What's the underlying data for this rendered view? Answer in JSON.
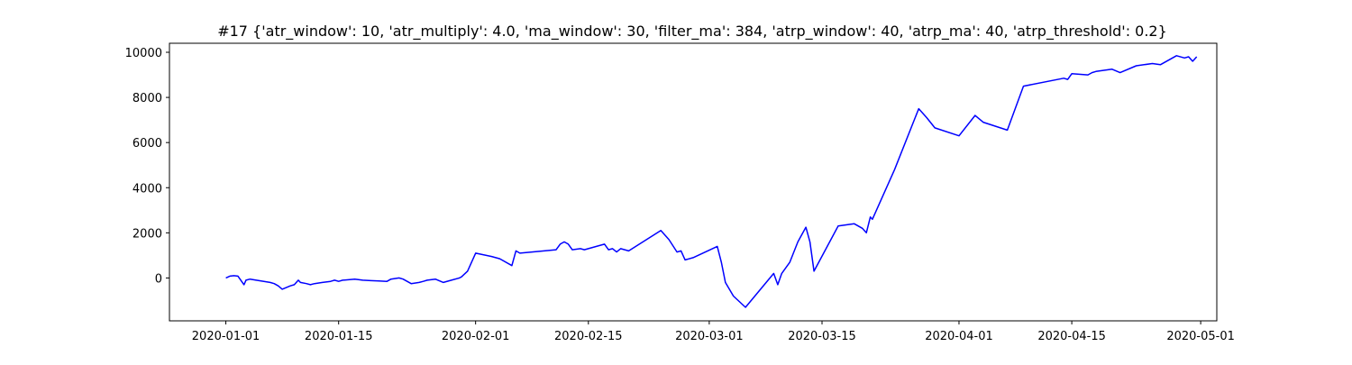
{
  "chart_data": {
    "type": "line",
    "title": "#17 {'atr_window': 10, 'atr_multiply': 4.0, 'ma_window': 30, 'filter_ma': 384, 'atrp_window': 40, 'atrp_ma': 40, 'atrp_threshold': 0.2}",
    "xlabel": "",
    "ylabel": "",
    "grid": false,
    "legend": "none",
    "line_color": "#0000ff",
    "xlim": [
      "2019-12-25",
      "2020-05-03"
    ],
    "ylim": [
      -1900,
      10400
    ],
    "x_ticks": [
      "2020-01-01",
      "2020-01-15",
      "2020-02-01",
      "2020-02-15",
      "2020-03-01",
      "2020-03-15",
      "2020-04-01",
      "2020-04-15",
      "2020-05-01"
    ],
    "y_ticks": [
      0,
      2000,
      4000,
      6000,
      8000,
      10000
    ],
    "series": [
      {
        "x": [
          "2020-01-01",
          "2020-01-01T12:00",
          "2020-01-02",
          "2020-01-02T12:00",
          "2020-01-03T06:00",
          "2020-01-03T12:00",
          "2020-01-04",
          "2020-01-06T12:00",
          "2020-01-07",
          "2020-01-07T12:00",
          "2020-01-08",
          "2020-01-09",
          "2020-01-09T12:00",
          "2020-01-10",
          "2020-01-10T06:00",
          "2020-01-11",
          "2020-01-11T12:00",
          "2020-01-12",
          "2020-01-13",
          "2020-01-14",
          "2020-01-14T12:00",
          "2020-01-15",
          "2020-01-15T12:00",
          "2020-01-17",
          "2020-01-18",
          "2020-01-19",
          "2020-01-20",
          "2020-01-21",
          "2020-01-21T12:00",
          "2020-01-22T12:00",
          "2020-01-23",
          "2020-01-24",
          "2020-01-25",
          "2020-01-25T12:00",
          "2020-01-26",
          "2020-01-27",
          "2020-01-28",
          "2020-01-29",
          "2020-01-30",
          "2020-01-30T06:00",
          "2020-01-31",
          "2020-01-31T12:00",
          "2020-02-01",
          "2020-02-03",
          "2020-02-04",
          "2020-02-05T12:00",
          "2020-02-06",
          "2020-02-06T12:00",
          "2020-02-11",
          "2020-02-11T12:00",
          "2020-02-12",
          "2020-02-12T12:00",
          "2020-02-13",
          "2020-02-14",
          "2020-02-14T12:00",
          "2020-02-17",
          "2020-02-17T12:00",
          "2020-02-18",
          "2020-02-18T12:00",
          "2020-02-19",
          "2020-02-20",
          "2020-02-24",
          "2020-02-25",
          "2020-02-26",
          "2020-02-26T12:00",
          "2020-02-27",
          "2020-02-28",
          "2020-03-02",
          "2020-03-02T12:00",
          "2020-03-03",
          "2020-03-04",
          "2020-03-05T12:00",
          "2020-03-09",
          "2020-03-09T12:00",
          "2020-03-10",
          "2020-03-11",
          "2020-03-12",
          "2020-03-13",
          "2020-03-13T12:00",
          "2020-03-14",
          "2020-03-17",
          "2020-03-19",
          "2020-03-20",
          "2020-03-20T12:00",
          "2020-03-21",
          "2020-03-21T06:00",
          "2020-03-24",
          "2020-03-27",
          "2020-03-28",
          "2020-03-29",
          "2020-04-01",
          "2020-04-03",
          "2020-04-04",
          "2020-04-07",
          "2020-04-09",
          "2020-04-14",
          "2020-04-14T12:00",
          "2020-04-15",
          "2020-04-17",
          "2020-04-17T12:00",
          "2020-04-18",
          "2020-04-20",
          "2020-04-21",
          "2020-04-23",
          "2020-04-25",
          "2020-04-26",
          "2020-04-28",
          "2020-04-29",
          "2020-04-29T12:00",
          "2020-04-30",
          "2020-04-30T12:00"
        ],
        "y": [
          0,
          80,
          100,
          80,
          -300,
          -100,
          -50,
          -200,
          -250,
          -350,
          -500,
          -350,
          -300,
          -100,
          -200,
          -250,
          -300,
          -250,
          -200,
          -150,
          -100,
          -150,
          -100,
          -50,
          -100,
          -120,
          -130,
          -150,
          -50,
          0,
          -50,
          -250,
          -200,
          -150,
          -100,
          -50,
          -200,
          -100,
          0,
          50,
          300,
          700,
          1100,
          950,
          850,
          550,
          1200,
          1100,
          1250,
          1500,
          1600,
          1500,
          1250,
          1300,
          1250,
          1500,
          1250,
          1300,
          1150,
          1300,
          1200,
          2100,
          1700,
          1150,
          1200,
          800,
          900,
          1400,
          700,
          -200,
          -800,
          -1300,
          200,
          -300,
          200,
          700,
          1600,
          2250,
          1600,
          300,
          2300,
          2400,
          2200,
          2000,
          2700,
          2600,
          4800,
          7500,
          7100,
          6650,
          6300,
          7200,
          6900,
          6550,
          8500,
          8850,
          8800,
          9050,
          9000,
          9100,
          9150,
          9250,
          9100,
          9400,
          9500,
          9450,
          9850,
          9750,
          9800,
          9600,
          9800
        ]
      }
    ]
  }
}
